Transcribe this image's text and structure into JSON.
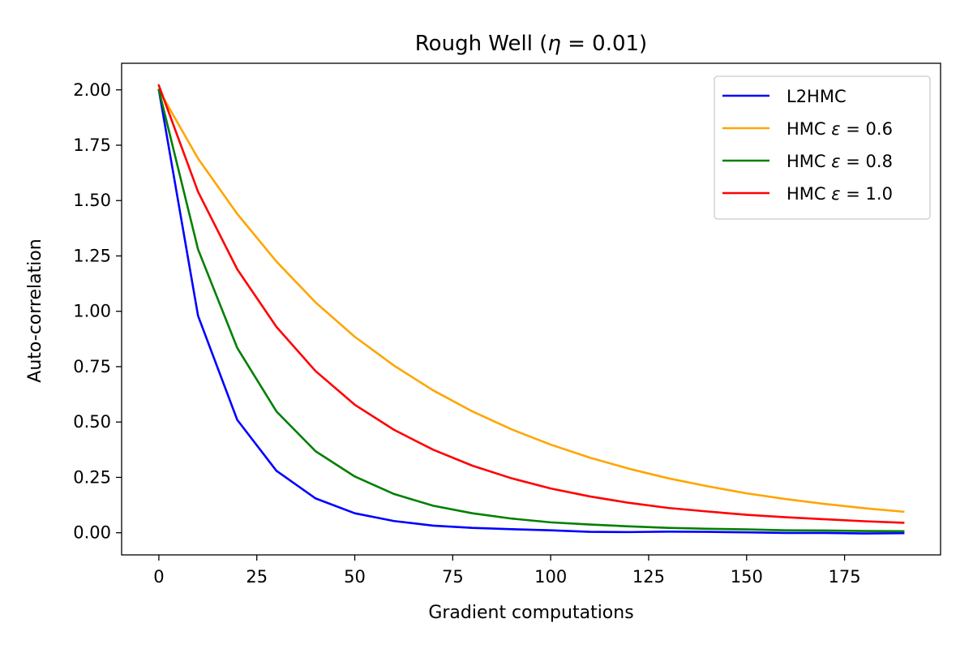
{
  "chart_data": {
    "type": "line",
    "title_prefix": "Rough Well (",
    "title_math_symbol": "η",
    "title_math_rest": " = 0.01)",
    "xlabel": "Gradient computations",
    "ylabel": "Auto-correlation",
    "xlim": [
      -9.5,
      199.5
    ],
    "ylim": [
      -0.1,
      2.12
    ],
    "xticks": [
      0,
      25,
      50,
      75,
      100,
      125,
      150,
      175
    ],
    "xtick_labels": [
      "0",
      "25",
      "50",
      "75",
      "100",
      "125",
      "150",
      "175"
    ],
    "yticks": [
      0.0,
      0.25,
      0.5,
      0.75,
      1.0,
      1.25,
      1.5,
      1.75,
      2.0
    ],
    "ytick_labels": [
      "0.00",
      "0.25",
      "0.50",
      "0.75",
      "1.00",
      "1.25",
      "1.50",
      "1.75",
      "2.00"
    ],
    "grid": false,
    "legend_position": "top-right",
    "x": [
      0,
      10,
      20,
      30,
      40,
      50,
      60,
      70,
      80,
      90,
      100,
      110,
      120,
      130,
      140,
      150,
      160,
      170,
      180,
      190
    ],
    "series": [
      {
        "name": "L2HMC",
        "name_prefix": "L2HMC",
        "name_symbol": "",
        "name_rest": "",
        "color": "#0000ff",
        "values": [
          2.0,
          0.98,
          0.51,
          0.28,
          0.155,
          0.088,
          0.053,
          0.032,
          0.022,
          0.016,
          0.011,
          0.004,
          0.003,
          0.005,
          0.004,
          0.002,
          -0.001,
          -0.001,
          -0.003,
          -0.002
        ]
      },
      {
        "name": "HMC ε = 0.6",
        "name_prefix": "HMC ",
        "name_symbol": "ε",
        "name_rest": " = 0.6",
        "color": "#ffa500",
        "values": [
          2.0,
          1.69,
          1.44,
          1.225,
          1.04,
          0.885,
          0.755,
          0.643,
          0.548,
          0.467,
          0.398,
          0.339,
          0.289,
          0.246,
          0.21,
          0.178,
          0.152,
          0.13,
          0.111,
          0.095
        ]
      },
      {
        "name": "HMC ε = 0.8",
        "name_prefix": "HMC ",
        "name_symbol": "ε",
        "name_rest": " = 0.8",
        "color": "#008000",
        "values": [
          2.0,
          1.28,
          0.835,
          0.548,
          0.368,
          0.254,
          0.175,
          0.122,
          0.088,
          0.064,
          0.047,
          0.037,
          0.029,
          0.022,
          0.018,
          0.015,
          0.011,
          0.01,
          0.008,
          0.007
        ]
      },
      {
        "name": "HMC ε = 1.0",
        "name_prefix": "HMC ",
        "name_symbol": "ε",
        "name_rest": " = 1.0",
        "color": "#ff0000",
        "values": [
          2.02,
          1.54,
          1.19,
          0.93,
          0.73,
          0.578,
          0.465,
          0.375,
          0.303,
          0.246,
          0.2,
          0.164,
          0.135,
          0.112,
          0.096,
          0.081,
          0.07,
          0.061,
          0.052,
          0.045
        ]
      }
    ]
  }
}
